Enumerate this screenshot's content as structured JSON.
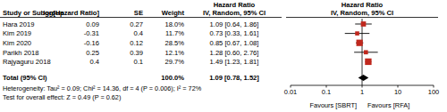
{
  "chart_data": {
    "type": "forest",
    "columns": [
      "Study or Subgroup",
      "log[Hazard Ratio]",
      "SE",
      "Weight"
    ],
    "effect_header": [
      "Hazard Ratio",
      "IV, Random, 95% CI"
    ],
    "plot_header": [
      "Hazard Ratio",
      "IV, Random, 95% CI"
    ],
    "categories": [
      "Hara 2019",
      "Kim 2019",
      "Kim 2020",
      "Parikh 2018",
      "Rajyaguru 2018"
    ],
    "log_hr": [
      0.09,
      -0.31,
      -0.16,
      0.25,
      0.4
    ],
    "se": [
      0.27,
      0.4,
      0.12,
      0.39,
      0.1
    ],
    "weights": [
      18.0,
      11.7,
      28.5,
      12.1,
      29.7
    ],
    "weight_labels": [
      "18.0%",
      "11.7%",
      "28.5%",
      "12.1%",
      "29.7%"
    ],
    "values": [
      1.09,
      0.73,
      0.85,
      1.28,
      1.49
    ],
    "ci_low": [
      0.64,
      0.33,
      0.67,
      0.6,
      1.23
    ],
    "ci_high": [
      1.86,
      1.61,
      1.08,
      2.76,
      1.81
    ],
    "value_labels": [
      "1.09 [0.64, 1.86]",
      "0.73 [0.33, 1.61]",
      "0.85 [0.67, 1.08]",
      "1.28 [0.60, 2.76]",
      "1.49 [1.23, 1.81]"
    ],
    "color": "#c0281e",
    "total": {
      "label": "Total (95% CI)",
      "weight": 100.0,
      "weight_label": "100.0%",
      "value": 1.09,
      "ci_low": 0.78,
      "ci_high": 1.52,
      "value_label": "1.09 [0.78, 1.52]"
    },
    "notes": [
      "Heterogeneity: Tau² = 0.09; Chi² = 14.36, df = 4 (P = 0.006); I² = 72%",
      "Test for overall effect: Z = 0.49 (P = 0.62)"
    ],
    "log": "x",
    "xlim": [
      0.01,
      100
    ],
    "xticks": [
      0.01,
      0.1,
      1,
      10,
      100
    ],
    "x_label_left": "Favours [SBRT]",
    "x_label_right": "Favours [RFA]"
  }
}
